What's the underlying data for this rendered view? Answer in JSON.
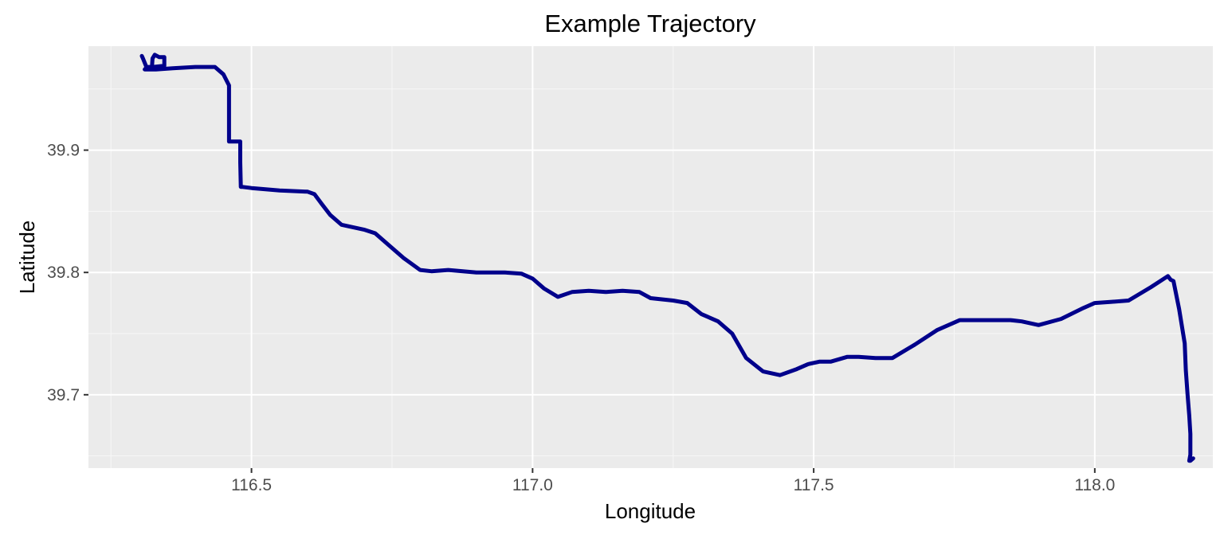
{
  "chart_data": {
    "type": "line",
    "title": "Example Trajectory",
    "xlabel": "Longitude",
    "ylabel": "Latitude",
    "xlim": [
      116.21,
      118.21
    ],
    "ylim": [
      39.64,
      39.985
    ],
    "x_ticks": [
      116.5,
      117.0,
      117.5,
      118.0
    ],
    "x_tick_labels": [
      "116.5",
      "117.0",
      "117.5",
      "118.0"
    ],
    "x_minor_ticks": [
      116.25,
      116.75,
      117.25,
      117.75
    ],
    "y_ticks": [
      39.7,
      39.8,
      39.9
    ],
    "y_tick_labels": [
      "39.7",
      "39.8",
      "39.9"
    ],
    "y_minor_ticks": [
      39.65,
      39.75,
      39.85,
      39.95
    ],
    "grid": true,
    "colors": {
      "panel_background": "#ebebeb",
      "grid_major": "#ffffff",
      "grid_minor": "#f7f7f7",
      "line": "#00008b",
      "tick_label": "#4d4d4d"
    },
    "series": [
      {
        "x": [
          116.305,
          116.307,
          116.313,
          116.318,
          116.323,
          116.324,
          116.328,
          116.336,
          116.345,
          116.345,
          116.325,
          116.312,
          116.31,
          116.33,
          116.36,
          116.4,
          116.435,
          116.45,
          116.46,
          116.46,
          116.46,
          116.48,
          116.48,
          116.481,
          116.483,
          116.5,
          116.55,
          116.6,
          116.612,
          116.625,
          116.64,
          116.66,
          116.7,
          116.72,
          116.745,
          116.77,
          116.8,
          116.82,
          116.85,
          116.9,
          116.95,
          116.98,
          117.0,
          117.02,
          117.045,
          117.07,
          117.1,
          117.13,
          117.16,
          117.19,
          117.21,
          117.25,
          117.275,
          117.3,
          117.33,
          117.355,
          117.38,
          117.41,
          117.44,
          117.47,
          117.49,
          117.51,
          117.53,
          117.56,
          117.58,
          117.61,
          117.64,
          117.68,
          117.72,
          117.76,
          117.8,
          117.85,
          117.87,
          117.9,
          117.94,
          117.98,
          118.0,
          118.03,
          118.06,
          118.1,
          118.13,
          118.135,
          118.14,
          118.15,
          118.16,
          118.162,
          118.165,
          118.168,
          118.17,
          118.17,
          118.168,
          118.17,
          118.175
        ],
        "y": [
          39.977,
          39.975,
          39.968,
          39.968,
          39.968,
          39.975,
          39.978,
          39.976,
          39.976,
          39.969,
          39.968,
          39.967,
          39.966,
          39.966,
          39.967,
          39.968,
          39.968,
          39.962,
          39.953,
          39.93,
          39.907,
          39.907,
          39.89,
          39.87,
          39.87,
          39.869,
          39.867,
          39.866,
          39.864,
          39.856,
          39.847,
          39.839,
          39.835,
          39.832,
          39.822,
          39.812,
          39.802,
          39.801,
          39.802,
          39.8,
          39.8,
          39.799,
          39.795,
          39.787,
          39.78,
          39.784,
          39.785,
          39.784,
          39.785,
          39.784,
          39.779,
          39.777,
          39.775,
          39.766,
          39.76,
          39.75,
          39.73,
          39.719,
          39.716,
          39.721,
          39.725,
          39.727,
          39.727,
          39.731,
          39.731,
          39.73,
          39.73,
          39.741,
          39.753,
          39.761,
          39.761,
          39.761,
          39.76,
          39.757,
          39.762,
          39.771,
          39.775,
          39.776,
          39.777,
          39.788,
          39.797,
          39.794,
          39.793,
          39.77,
          39.742,
          39.72,
          39.7,
          39.683,
          39.668,
          39.651,
          39.646,
          39.646,
          39.648
        ]
      }
    ]
  }
}
